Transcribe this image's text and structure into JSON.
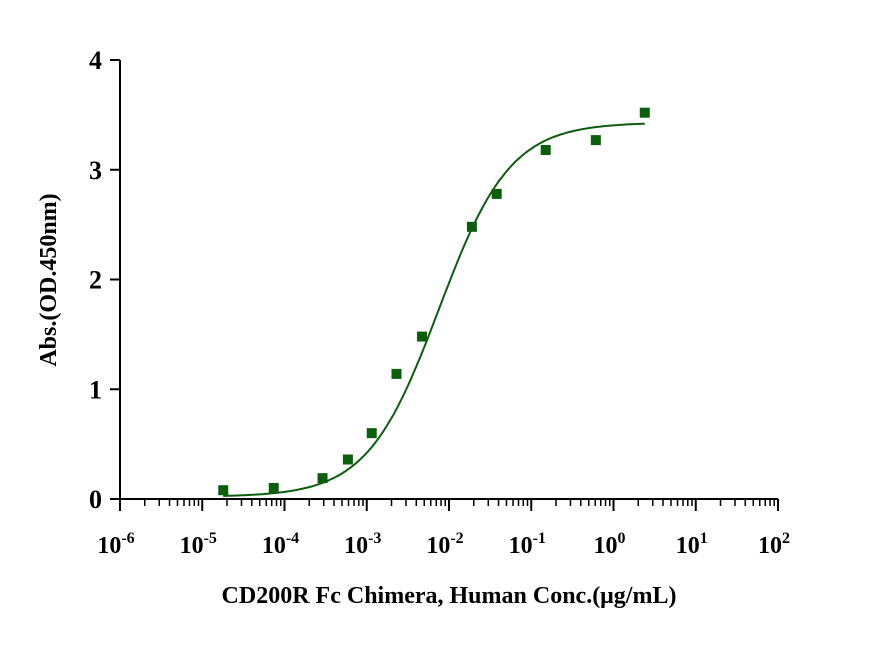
{
  "chart_data": {
    "type": "scatter",
    "title": "",
    "xlabel": "CD200R Fc Chimera, Human Conc.(μg/mL)",
    "ylabel": "Abs.(OD.450nm)",
    "xscale": "log",
    "xlim": [
      1e-06,
      100
    ],
    "ylim": [
      0,
      4
    ],
    "x_ticks": [
      {
        "base": "10",
        "exp": "-6"
      },
      {
        "base": "10",
        "exp": "-5"
      },
      {
        "base": "10",
        "exp": "-4"
      },
      {
        "base": "10",
        "exp": "-3"
      },
      {
        "base": "10",
        "exp": "-2"
      },
      {
        "base": "10",
        "exp": "-1"
      },
      {
        "base": "10",
        "exp": "0"
      },
      {
        "base": "10",
        "exp": "1"
      },
      {
        "base": "10",
        "exp": "2"
      }
    ],
    "y_ticks": [
      "0",
      "1",
      "2",
      "3",
      "4"
    ],
    "grid": false,
    "color": "#0b5e0b",
    "points": {
      "x": [
        1.8e-05,
        7.4e-05,
        0.00029,
        0.00059,
        0.00115,
        0.0023,
        0.0047,
        0.019,
        0.038,
        0.15,
        0.61,
        2.4
      ],
      "y": [
        0.08,
        0.1,
        0.19,
        0.36,
        0.6,
        1.14,
        1.48,
        2.48,
        2.78,
        3.18,
        3.27,
        3.52
      ]
    },
    "fit": {
      "model": "4PL",
      "bottom": 0.02,
      "top": 3.43,
      "ec50": 0.0075,
      "hill": 1.0,
      "x_range": [
        1.8e-05,
        2.4
      ]
    }
  }
}
